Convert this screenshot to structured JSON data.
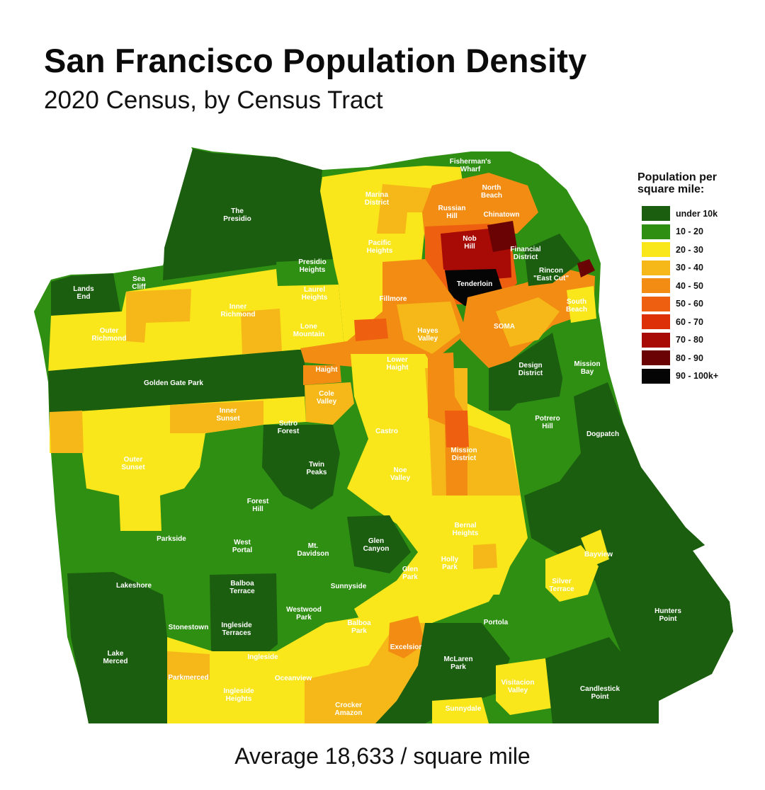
{
  "title": "San Francisco Population Density",
  "subtitle": "2020 Census, by Census Tract",
  "footer": "Average 18,633 / square mile",
  "legend": {
    "title_line1": "Population per",
    "title_line2": "square mile:",
    "items": [
      {
        "label": "under 10k",
        "color": "#1b5e0f"
      },
      {
        "label": "10 - 20",
        "color": "#2e8f12"
      },
      {
        "label": "20 - 30",
        "color": "#f9e61b"
      },
      {
        "label": "30 - 40",
        "color": "#f6b818"
      },
      {
        "label": "40 - 50",
        "color": "#f28c12"
      },
      {
        "label": "50 - 60",
        "color": "#ee5f10"
      },
      {
        "label": "60 - 70",
        "color": "#dd3009"
      },
      {
        "label": "70 - 80",
        "color": "#a80a06"
      },
      {
        "label": "80 - 90",
        "color": "#6a0404"
      },
      {
        "label": "90 - 100k+",
        "color": "#050505"
      }
    ]
  },
  "neighborhoods": [
    {
      "lines": [
        "Fisherman's",
        "Wharf"
      ]
    },
    {
      "lines": [
        "North",
        "Beach"
      ]
    },
    {
      "lines": [
        "Marina",
        "District"
      ]
    },
    {
      "lines": [
        "Russian",
        "Hill"
      ]
    },
    {
      "lines": [
        "Chinatown"
      ]
    },
    {
      "lines": [
        "The",
        "Presidio"
      ]
    },
    {
      "lines": [
        "Nob",
        "Hill"
      ]
    },
    {
      "lines": [
        "Pacific",
        "Heights"
      ]
    },
    {
      "lines": [
        "Financial",
        "District"
      ]
    },
    {
      "lines": [
        "Presidio",
        "Heights"
      ]
    },
    {
      "lines": [
        "Rincon",
        "\"East Cut\""
      ]
    },
    {
      "lines": [
        "Tenderloin"
      ]
    },
    {
      "lines": [
        "Lands",
        "End"
      ]
    },
    {
      "lines": [
        "Sea",
        "Cliff"
      ]
    },
    {
      "lines": [
        "Laurel",
        "Heights"
      ]
    },
    {
      "lines": [
        "Fillmore"
      ]
    },
    {
      "lines": [
        "South",
        "Beach"
      ]
    },
    {
      "lines": [
        "Inner",
        "Richmond"
      ]
    },
    {
      "lines": [
        "Lone",
        "Mountain"
      ]
    },
    {
      "lines": [
        "Hayes",
        "Valley"
      ]
    },
    {
      "lines": [
        "SOMA"
      ]
    },
    {
      "lines": [
        "Outer",
        "Richmond"
      ]
    },
    {
      "lines": [
        "Lower",
        "Haight"
      ]
    },
    {
      "lines": [
        "Haight"
      ]
    },
    {
      "lines": [
        "Design",
        "District"
      ]
    },
    {
      "lines": [
        "Mission",
        "Bay"
      ]
    },
    {
      "lines": [
        "Golden Gate Park"
      ]
    },
    {
      "lines": [
        "Cole",
        "Valley"
      ]
    },
    {
      "lines": [
        "Inner",
        "Sunset"
      ]
    },
    {
      "lines": [
        "Sutro",
        "Forest"
      ]
    },
    {
      "lines": [
        "Potrero",
        "Hill"
      ]
    },
    {
      "lines": [
        "Castro"
      ]
    },
    {
      "lines": [
        "Dogpatch"
      ]
    },
    {
      "lines": [
        "Mission",
        "District"
      ]
    },
    {
      "lines": [
        "Outer",
        "Sunset"
      ]
    },
    {
      "lines": [
        "Twin",
        "Peaks"
      ]
    },
    {
      "lines": [
        "Noe",
        "Valley"
      ]
    },
    {
      "lines": [
        "Forest",
        "Hill"
      ]
    },
    {
      "lines": [
        "Bernal",
        "Heights"
      ]
    },
    {
      "lines": [
        "Parkside"
      ]
    },
    {
      "lines": [
        "West",
        "Portal"
      ]
    },
    {
      "lines": [
        "Mt.",
        "Davidson"
      ]
    },
    {
      "lines": [
        "Glen",
        "Canyon"
      ]
    },
    {
      "lines": [
        "Bayview"
      ]
    },
    {
      "lines": [
        "Holly",
        "Park"
      ]
    },
    {
      "lines": [
        "Glen",
        "Park"
      ]
    },
    {
      "lines": [
        "Silver",
        "Terrace"
      ]
    },
    {
      "lines": [
        "Lakeshore"
      ]
    },
    {
      "lines": [
        "Balboa",
        "Terrace"
      ]
    },
    {
      "lines": [
        "Sunnyside"
      ]
    },
    {
      "lines": [
        "Westwood",
        "Park"
      ]
    },
    {
      "lines": [
        "Hunters",
        "Point"
      ]
    },
    {
      "lines": [
        "Stonestown"
      ]
    },
    {
      "lines": [
        "Ingleside",
        "Terraces"
      ]
    },
    {
      "lines": [
        "Balboa",
        "Park"
      ]
    },
    {
      "lines": [
        "Portola"
      ]
    },
    {
      "lines": [
        "Excelsior"
      ]
    },
    {
      "lines": [
        "Lake",
        "Merced"
      ]
    },
    {
      "lines": [
        "Ingleside"
      ]
    },
    {
      "lines": [
        "McLaren",
        "Park"
      ]
    },
    {
      "lines": [
        "Parkmerced"
      ]
    },
    {
      "lines": [
        "Oceanview"
      ]
    },
    {
      "lines": [
        "Visitacion",
        "Valley"
      ]
    },
    {
      "lines": [
        "Candlestick",
        "Point"
      ]
    },
    {
      "lines": [
        "Ingleside",
        "Heights"
      ]
    },
    {
      "lines": [
        "Crocker",
        "Amazon"
      ]
    },
    {
      "lines": [
        "Sunnydale"
      ]
    }
  ]
}
